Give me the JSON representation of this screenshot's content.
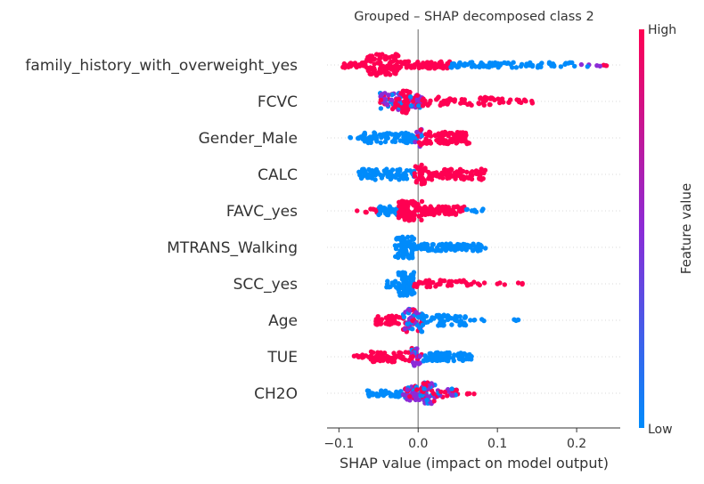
{
  "chart_data": {
    "type": "scatter",
    "subtype": "shap-beeswarm",
    "title": "Grouped – SHAP decomposed class 2",
    "xlabel": "SHAP value (impact on model output)",
    "xlim": [
      -0.115,
      0.255
    ],
    "xticks": [
      -0.1,
      0.0,
      0.1,
      0.2
    ],
    "xtick_labels": [
      "−0.1",
      "0.0",
      "0.1",
      "0.2"
    ],
    "zero_line": 0,
    "colorbar": {
      "label": "Feature value",
      "high_label": "High",
      "low_label": "Low",
      "high_color": "#ff0052",
      "mid_color": "#8c2bd6",
      "low_color": "#008bfb"
    },
    "grid": false,
    "features": [
      {
        "name": "family_history_with_overweight_yes",
        "segments": [
          {
            "from": -0.095,
            "to": -0.065,
            "color": "high",
            "n": 30,
            "spread": 3
          },
          {
            "from": -0.065,
            "to": -0.025,
            "color": "high",
            "n": 95,
            "spread": 12
          },
          {
            "from": -0.025,
            "to": 0.04,
            "color": "high",
            "n": 70,
            "spread": 4
          },
          {
            "from": 0.04,
            "to": 0.1,
            "color": "low",
            "n": 40,
            "spread": 3
          },
          {
            "from": 0.1,
            "to": 0.2,
            "color": "low",
            "n": 40,
            "spread": 3
          },
          {
            "from": 0.2,
            "to": 0.24,
            "color": "mix",
            "n": 8,
            "spread": 2
          }
        ]
      },
      {
        "name": "FCVC",
        "segments": [
          {
            "from": -0.048,
            "to": -0.02,
            "color": "mix",
            "n": 60,
            "spread": 10
          },
          {
            "from": -0.02,
            "to": -0.01,
            "color": "high",
            "n": 35,
            "spread": 13
          },
          {
            "from": -0.01,
            "to": 0.005,
            "color": "mix",
            "n": 30,
            "spread": 7
          },
          {
            "from": 0.005,
            "to": 0.095,
            "color": "high",
            "n": 55,
            "spread": 5
          },
          {
            "from": 0.095,
            "to": 0.145,
            "color": "high",
            "n": 18,
            "spread": 3
          }
        ]
      },
      {
        "name": "Gender_Male",
        "segments": [
          {
            "from": -0.088,
            "to": -0.075,
            "color": "low",
            "n": 3,
            "spread": 1
          },
          {
            "from": -0.075,
            "to": -0.005,
            "color": "low",
            "n": 90,
            "spread": 6
          },
          {
            "from": -0.005,
            "to": 0.005,
            "color": "mix",
            "n": 15,
            "spread": 10
          },
          {
            "from": 0.005,
            "to": 0.065,
            "color": "high",
            "n": 90,
            "spread": 7
          }
        ]
      },
      {
        "name": "CALC",
        "segments": [
          {
            "from": -0.075,
            "to": -0.005,
            "color": "low",
            "n": 80,
            "spread": 6
          },
          {
            "from": -0.005,
            "to": 0.01,
            "color": "high",
            "n": 30,
            "spread": 12
          },
          {
            "from": 0.01,
            "to": 0.085,
            "color": "high",
            "n": 90,
            "spread": 6
          }
        ]
      },
      {
        "name": "FAVC_yes",
        "segments": [
          {
            "from": -0.082,
            "to": -0.05,
            "color": "high",
            "n": 10,
            "spread": 2
          },
          {
            "from": -0.05,
            "to": -0.025,
            "color": "low",
            "n": 35,
            "spread": 5
          },
          {
            "from": -0.025,
            "to": 0.005,
            "color": "high",
            "n": 80,
            "spread": 11
          },
          {
            "from": 0.005,
            "to": 0.06,
            "color": "high",
            "n": 70,
            "spread": 5
          },
          {
            "from": 0.06,
            "to": 0.088,
            "color": "low",
            "n": 8,
            "spread": 2
          }
        ]
      },
      {
        "name": "MTRANS_Walking",
        "segments": [
          {
            "from": -0.03,
            "to": -0.005,
            "color": "low",
            "n": 70,
            "spread": 12
          },
          {
            "from": -0.005,
            "to": 0.085,
            "color": "low",
            "n": 90,
            "spread": 4
          }
        ]
      },
      {
        "name": "SCC_yes",
        "segments": [
          {
            "from": -0.04,
            "to": -0.025,
            "color": "low",
            "n": 10,
            "spread": 4
          },
          {
            "from": -0.025,
            "to": -0.005,
            "color": "low",
            "n": 80,
            "spread": 13
          },
          {
            "from": -0.005,
            "to": 0.06,
            "color": "high",
            "n": 40,
            "spread": 4
          },
          {
            "from": 0.06,
            "to": 0.085,
            "color": "high",
            "n": 8,
            "spread": 2
          },
          {
            "from": 0.095,
            "to": 0.135,
            "color": "high",
            "n": 6,
            "spread": 1
          }
        ]
      },
      {
        "name": "Age",
        "segments": [
          {
            "from": -0.055,
            "to": -0.02,
            "color": "high",
            "n": 40,
            "spread": 5
          },
          {
            "from": -0.02,
            "to": 0.005,
            "color": "mix",
            "n": 70,
            "spread": 13
          },
          {
            "from": 0.005,
            "to": 0.06,
            "color": "low",
            "n": 55,
            "spread": 6
          },
          {
            "from": 0.06,
            "to": 0.09,
            "color": "low",
            "n": 5,
            "spread": 1
          },
          {
            "from": 0.12,
            "to": 0.13,
            "color": "low",
            "n": 4,
            "spread": 1
          }
        ]
      },
      {
        "name": "TUE",
        "segments": [
          {
            "from": -0.083,
            "to": -0.06,
            "color": "high",
            "n": 12,
            "spread": 2
          },
          {
            "from": -0.06,
            "to": -0.008,
            "color": "high",
            "n": 70,
            "spread": 6
          },
          {
            "from": -0.008,
            "to": 0.005,
            "color": "mix",
            "n": 25,
            "spread": 10
          },
          {
            "from": 0.005,
            "to": 0.068,
            "color": "low",
            "n": 70,
            "spread": 5
          }
        ]
      },
      {
        "name": "CH2O",
        "segments": [
          {
            "from": -0.065,
            "to": -0.02,
            "color": "low",
            "n": 40,
            "spread": 4
          },
          {
            "from": -0.02,
            "to": 0.005,
            "color": "mix",
            "n": 50,
            "spread": 8
          },
          {
            "from": 0.005,
            "to": 0.022,
            "color": "mix",
            "n": 45,
            "spread": 12
          },
          {
            "from": 0.022,
            "to": 0.05,
            "color": "mix",
            "n": 30,
            "spread": 5
          },
          {
            "from": 0.06,
            "to": 0.075,
            "color": "high",
            "n": 4,
            "spread": 1
          }
        ]
      }
    ]
  }
}
